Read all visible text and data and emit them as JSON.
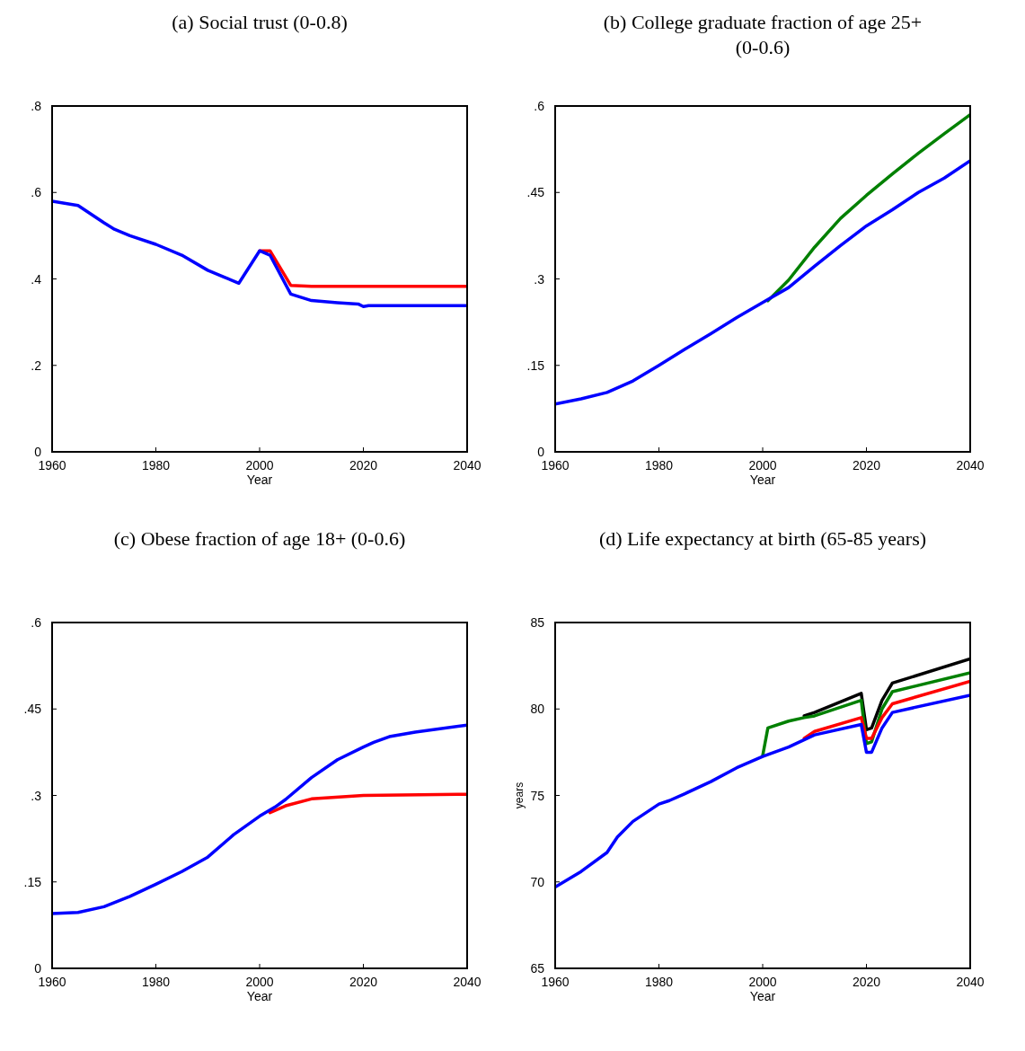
{
  "chart_data": [
    {
      "type": "line",
      "title": "(a) Social trust (0-0.8)",
      "xlabel": "Year",
      "xlim": [
        1960,
        2040
      ],
      "xticks": [
        1960,
        1980,
        2000,
        2020,
        2040
      ],
      "ylim": [
        0,
        0.8
      ],
      "yticks": [
        {
          "value": 0,
          "label": "0"
        },
        {
          "value": 0.2,
          "label": ".2"
        },
        {
          "value": 0.4,
          "label": ".4"
        },
        {
          "value": 0.6,
          "label": ".6"
        },
        {
          "value": 0.8,
          "label": ".8"
        }
      ],
      "grid": false,
      "series": [
        {
          "color": "#ff0000",
          "x": [
            2000,
            2002,
            2006,
            2010,
            2040
          ],
          "values": [
            0.465,
            0.465,
            0.385,
            0.383,
            0.383
          ]
        },
        {
          "color": "#0000ff",
          "x": [
            1960,
            1965,
            1970,
            1972,
            1975,
            1980,
            1985,
            1990,
            1993,
            1996,
            2000,
            2002,
            2006,
            2010,
            2015,
            2019,
            2020,
            2021,
            2040
          ],
          "values": [
            0.58,
            0.57,
            0.53,
            0.515,
            0.5,
            0.48,
            0.455,
            0.42,
            0.405,
            0.39,
            0.465,
            0.455,
            0.365,
            0.35,
            0.345,
            0.342,
            0.336,
            0.338,
            0.338
          ]
        }
      ]
    },
    {
      "type": "line",
      "title": "(b) College graduate fraction of age 25+ (0-0.6)",
      "xlabel": "Year",
      "xlim": [
        1960,
        2040
      ],
      "xticks": [
        1960,
        1980,
        2000,
        2020,
        2040
      ],
      "ylim": [
        0,
        0.6
      ],
      "yticks": [
        {
          "value": 0,
          "label": "0"
        },
        {
          "value": 0.15,
          "label": ".15"
        },
        {
          "value": 0.3,
          "label": ".3"
        },
        {
          "value": 0.45,
          "label": ".45"
        },
        {
          "value": 0.6,
          "label": ".6"
        }
      ],
      "grid": false,
      "series": [
        {
          "color": "#008000",
          "x": [
            2001,
            2005,
            2010,
            2015,
            2020,
            2025,
            2030,
            2035,
            2040
          ],
          "values": [
            0.262,
            0.298,
            0.355,
            0.405,
            0.445,
            0.482,
            0.518,
            0.552,
            0.585
          ]
        },
        {
          "color": "#0000ff",
          "x": [
            1960,
            1965,
            1970,
            1975,
            1980,
            1985,
            1990,
            1995,
            2000,
            2005,
            2010,
            2015,
            2020,
            2025,
            2030,
            2035,
            2040
          ],
          "values": [
            0.083,
            0.092,
            0.103,
            0.123,
            0.15,
            0.178,
            0.205,
            0.233,
            0.259,
            0.285,
            0.322,
            0.358,
            0.392,
            0.42,
            0.45,
            0.475,
            0.505
          ]
        }
      ]
    },
    {
      "type": "line",
      "title": "(c) Obese fraction of age 18+ (0-0.6)",
      "xlabel": "Year",
      "xlim": [
        1960,
        2040
      ],
      "xticks": [
        1960,
        1980,
        2000,
        2020,
        2040
      ],
      "ylim": [
        0,
        0.6
      ],
      "yticks": [
        {
          "value": 0,
          "label": "0"
        },
        {
          "value": 0.15,
          "label": ".15"
        },
        {
          "value": 0.3,
          "label": ".3"
        },
        {
          "value": 0.45,
          "label": ".45"
        },
        {
          "value": 0.6,
          "label": ".6"
        }
      ],
      "grid": false,
      "series": [
        {
          "color": "#ff0000",
          "x": [
            2002,
            2005,
            2010,
            2020,
            2040
          ],
          "values": [
            0.27,
            0.282,
            0.294,
            0.3,
            0.302
          ]
        },
        {
          "color": "#0000ff",
          "x": [
            1960,
            1965,
            1970,
            1975,
            1980,
            1985,
            1990,
            1995,
            2000,
            2003,
            2005,
            2010,
            2015,
            2020,
            2022,
            2025,
            2030,
            2040
          ],
          "values": [
            0.095,
            0.097,
            0.107,
            0.125,
            0.146,
            0.168,
            0.193,
            0.232,
            0.264,
            0.28,
            0.293,
            0.331,
            0.362,
            0.384,
            0.392,
            0.402,
            0.41,
            0.422
          ]
        }
      ]
    },
    {
      "type": "line",
      "title": "(d) Life expectancy at birth (65-85 years)",
      "xlabel": "Year",
      "ylabel": "years",
      "xlim": [
        1960,
        2040
      ],
      "xticks": [
        1960,
        1980,
        2000,
        2020,
        2040
      ],
      "ylim": [
        65,
        85
      ],
      "yticks": [
        65,
        70,
        75,
        80,
        85
      ],
      "grid": false,
      "series": [
        {
          "color": "#000000",
          "x": [
            2008,
            2010,
            2019,
            2020,
            2021,
            2023,
            2025,
            2040
          ],
          "values": [
            79.6,
            79.8,
            80.9,
            78.8,
            78.9,
            80.5,
            81.5,
            82.9
          ]
        },
        {
          "color": "#008000",
          "x": [
            2000,
            2001,
            2005,
            2008,
            2010,
            2019,
            2020,
            2021,
            2023,
            2025,
            2040
          ],
          "values": [
            77.3,
            78.9,
            79.3,
            79.5,
            79.6,
            80.5,
            78,
            78.1,
            80,
            81,
            82.1
          ]
        },
        {
          "color": "#ff0000",
          "x": [
            2008,
            2010,
            2019,
            2020,
            2021,
            2023,
            2025,
            2040
          ],
          "values": [
            78.3,
            78.7,
            79.5,
            78.3,
            78.3,
            79.5,
            80.3,
            81.6
          ]
        },
        {
          "color": "#0000ff",
          "x": [
            1960,
            1965,
            1970,
            1972,
            1975,
            1980,
            1982,
            1985,
            1990,
            1995,
            2000,
            2005,
            2010,
            2019,
            2020,
            2021,
            2023,
            2025,
            2040
          ],
          "values": [
            69.7,
            70.6,
            71.7,
            72.6,
            73.5,
            74.5,
            74.7,
            75.1,
            75.8,
            76.6,
            77.25,
            77.8,
            78.5,
            79.1,
            77.5,
            77.5,
            78.9,
            79.8,
            80.8
          ]
        }
      ]
    }
  ]
}
